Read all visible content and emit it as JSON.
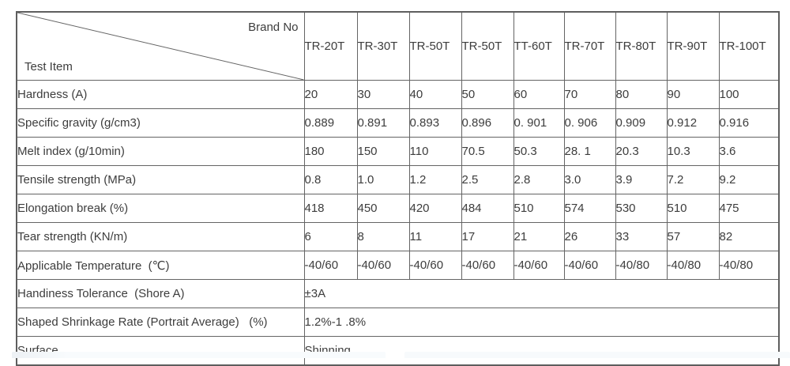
{
  "table": {
    "corner": {
      "brand_label": "Brand No",
      "test_item_label": "Test Item"
    },
    "brand_columns": [
      "TR-20T",
      "TR-30T",
      "TR-50T",
      "TR-50T",
      "TT-60T",
      "TR-70T",
      "TR-80T",
      "TR-90T",
      "TR-100T"
    ],
    "rows": [
      {
        "label": "Hardness (A)",
        "values": [
          "20",
          "30",
          "40",
          "50",
          "60",
          "70",
          "80",
          "90",
          "100"
        ]
      },
      {
        "label": "Specific gravity (g/cm3)",
        "values": [
          "0.889",
          "0.891",
          "0.893",
          "0.896",
          "0. 901",
          "0. 906",
          "0.909",
          "0.912",
          "0.916"
        ]
      },
      {
        "label": "Melt index (g/10min)",
        "values": [
          "180",
          "150",
          "110",
          "70.5",
          "50.3",
          "28. 1",
          "20.3",
          "10.3",
          "3.6"
        ]
      },
      {
        "label": "Tensile strength (MPa)",
        "values": [
          "0.8",
          "1.0",
          "1.2",
          "2.5",
          "2.8",
          "3.0",
          "3.9",
          "7.2",
          "9.2"
        ]
      },
      {
        "label": "Elongation break (%)",
        "values": [
          "418",
          "450",
          "420",
          "484",
          "510",
          "574",
          "530",
          "510",
          "475"
        ]
      },
      {
        "label": "Tear strength (KN/m)",
        "values": [
          "6",
          "8",
          "11",
          "17",
          "21",
          "26",
          "33",
          "57",
          "82"
        ]
      },
      {
        "label": "Applicable Temperature  (℃)",
        "values": [
          "-40/60",
          "-40/60",
          "-40/60",
          "-40/60",
          "-40/60",
          "-40/60",
          "-40/80",
          "-40/80",
          "-40/80"
        ]
      }
    ],
    "span_rows": [
      {
        "label": "Handiness Tolerance  (Shore A)",
        "value": "±3A"
      },
      {
        "label": "Shaped Shrinkage Rate (Portrait Average)   (%)",
        "value": "1.2%-1 .8%"
      },
      {
        "label": "Surface",
        "value": "Shinning"
      }
    ]
  },
  "colors": {
    "table_border": "#5e5e5e",
    "text": "#3d3d3d",
    "footer_bar": "#f7fafc"
  }
}
